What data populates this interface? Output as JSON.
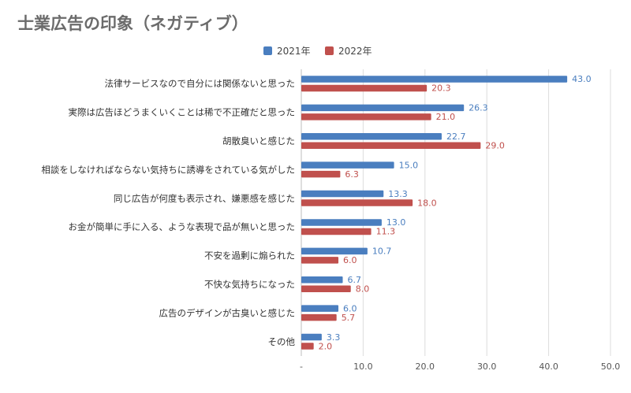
{
  "chart_data": {
    "type": "bar",
    "orientation": "horizontal",
    "title": "士業広告の印象（ネガティブ）",
    "categories": [
      "法律サービスなので自分には関係ないと思った",
      "実際は広告ほどうまくいくことは稀で不正確だと思った",
      "胡散臭いと感じた",
      "相談をしなければならない気持ちに誘導をされている気がした",
      "同じ広告が何度も表示され、嫌悪感を感じた",
      "お金が簡単に手に入る、ような表現で品が無いと思った",
      "不安を過剰に煽られた",
      "不快な気持ちになった",
      "広告のデザインが古臭いと感じた",
      "その他"
    ],
    "series": [
      {
        "name": "2021年",
        "color": "#4a7ebf",
        "values": [
          43.0,
          26.3,
          22.7,
          15.0,
          13.3,
          13.0,
          10.7,
          6.7,
          6.0,
          3.3
        ]
      },
      {
        "name": "2022年",
        "color": "#c0504d",
        "values": [
          20.3,
          21.0,
          29.0,
          6.3,
          18.0,
          11.3,
          6.0,
          8.0,
          5.7,
          2.0
        ]
      }
    ],
    "xlim": [
      0,
      50
    ],
    "xticks": [
      "-",
      "10.0",
      "20.0",
      "30.0",
      "40.0",
      "50.0"
    ],
    "grid": true,
    "legend_position": "top"
  }
}
